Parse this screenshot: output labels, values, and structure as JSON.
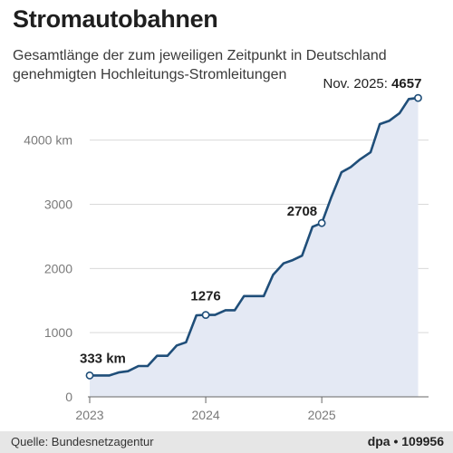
{
  "header": {
    "title": "Stromautobahnen",
    "subtitle": "Gesamtlänge der zum jeweiligen Zeitpunkt in Deutschland genehmigten Hochleitungs-Stromleitungen"
  },
  "footer": {
    "source": "Quelle: Bundesnetzagentur",
    "credit": "dpa • 109956"
  },
  "colors": {
    "line": "#1f4e79",
    "area": "#e4e9f4",
    "grid": "#d9d9d9"
  },
  "chart_data": {
    "type": "area",
    "title": "Stromautobahnen",
    "xlabel": "",
    "ylabel": "",
    "ylim": [
      0,
      4800
    ],
    "xlim": [
      2023.0,
      2025.92
    ],
    "grid": true,
    "x_ticks": [
      {
        "value": 2023,
        "label": "2023"
      },
      {
        "value": 2024,
        "label": "2024"
      },
      {
        "value": 2025,
        "label": "2025"
      }
    ],
    "y_ticks": [
      {
        "value": 0,
        "label": "0"
      },
      {
        "value": 1000,
        "label": "1000"
      },
      {
        "value": 2000,
        "label": "2000"
      },
      {
        "value": 3000,
        "label": "3000"
      },
      {
        "value": 4000,
        "label": "4000 km"
      }
    ],
    "x": [
      2023.0,
      2023.08,
      2023.17,
      2023.25,
      2023.33,
      2023.42,
      2023.5,
      2023.58,
      2023.67,
      2023.75,
      2023.83,
      2023.92,
      2024.0,
      2024.08,
      2024.17,
      2024.25,
      2024.33,
      2024.42,
      2024.5,
      2024.58,
      2024.67,
      2024.75,
      2024.83,
      2024.92,
      2025.0,
      2025.08,
      2025.17,
      2025.25,
      2025.33,
      2025.42,
      2025.5,
      2025.58,
      2025.67,
      2025.75,
      2025.83
    ],
    "values": [
      333,
      333,
      333,
      380,
      400,
      480,
      480,
      640,
      640,
      800,
      850,
      1270,
      1276,
      1276,
      1350,
      1350,
      1570,
      1570,
      1570,
      1900,
      2080,
      2130,
      2200,
      2650,
      2708,
      3100,
      3500,
      3580,
      3700,
      3810,
      4250,
      4300,
      4420,
      4640,
      4657
    ],
    "annotations": [
      {
        "index": 0,
        "label": "333 km",
        "prefix": ""
      },
      {
        "index": 12,
        "label": "1276",
        "prefix": ""
      },
      {
        "index": 24,
        "label": "2708",
        "prefix": ""
      },
      {
        "index": 34,
        "label": "4657",
        "prefix": "Nov. 2025: "
      }
    ]
  }
}
